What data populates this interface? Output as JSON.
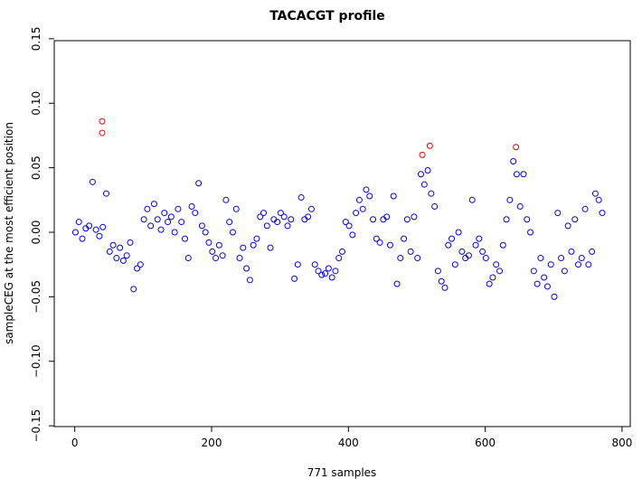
{
  "chart_data": {
    "type": "scatter",
    "title": "TACACGT profile",
    "x_label": "771 samples",
    "y_label": "sampleCEG at the most efficient position",
    "xlim": [
      -30,
      812
    ],
    "xticks": [
      0,
      200,
      400,
      600,
      800
    ],
    "ylim": [
      -0.152,
      0.152
    ],
    "yticks": [
      {
        "value": -0.15,
        "label": "−0.15"
      },
      {
        "value": -0.1,
        "label": "−0.10"
      },
      {
        "value": -0.05,
        "label": "−0.05"
      },
      {
        "value": 0,
        "label": "0.00"
      },
      {
        "value": 0.05,
        "label": "0.05"
      },
      {
        "value": 0.1,
        "label": "0.10"
      },
      {
        "value": 0.15,
        "label": "0.15"
      }
    ],
    "series": [
      {
        "color": "#0000ff",
        "x": [
          1,
          6,
          11,
          16,
          21,
          26,
          31,
          36,
          41,
          46,
          51,
          56,
          61,
          66,
          71,
          76,
          81,
          86,
          91,
          96,
          101,
          106,
          111,
          116,
          121,
          126,
          131,
          136,
          141,
          146,
          151,
          156,
          161,
          166,
          171,
          176,
          181,
          186,
          191,
          196,
          201,
          206,
          211,
          216,
          221,
          226,
          231,
          236,
          241,
          246,
          251,
          256,
          261,
          266,
          271,
          276,
          281,
          286,
          291,
          296,
          301,
          306,
          311,
          316,
          321,
          326,
          331,
          336,
          341,
          346,
          351,
          356,
          361,
          366,
          371,
          376,
          381,
          386,
          391,
          396,
          401,
          406,
          411,
          416,
          421,
          426,
          431,
          436,
          441,
          446,
          451,
          456,
          461,
          466,
          471,
          476,
          481,
          486,
          491,
          496,
          501,
          506,
          511,
          516,
          521,
          526,
          531,
          536,
          541,
          546,
          551,
          556,
          561,
          566,
          571,
          576,
          581,
          586,
          591,
          596,
          601,
          606,
          611,
          616,
          621,
          626,
          631,
          636,
          641,
          646,
          651,
          656,
          661,
          666,
          671,
          676,
          681,
          686,
          691,
          696,
          701,
          706,
          711,
          716,
          721,
          726,
          731,
          736,
          741,
          746,
          751,
          756,
          761,
          766,
          771
        ],
        "values": [
          0.0,
          0.008,
          -0.005,
          0.003,
          0.005,
          0.039,
          0.002,
          -0.003,
          0.004,
          0.03,
          -0.015,
          -0.01,
          -0.02,
          -0.012,
          -0.022,
          -0.018,
          -0.008,
          -0.044,
          -0.028,
          -0.025,
          0.01,
          0.018,
          0.005,
          0.022,
          0.01,
          0.002,
          0.015,
          0.008,
          0.012,
          0.0,
          0.018,
          0.008,
          -0.005,
          -0.02,
          0.02,
          0.015,
          0.038,
          0.005,
          0.0,
          -0.008,
          -0.015,
          -0.02,
          -0.01,
          -0.018,
          0.025,
          0.008,
          0.0,
          0.018,
          -0.02,
          -0.012,
          -0.028,
          -0.037,
          -0.01,
          -0.005,
          0.012,
          0.015,
          0.005,
          -0.012,
          0.01,
          0.008,
          0.015,
          0.012,
          0.005,
          0.01,
          -0.036,
          -0.025,
          0.027,
          0.01,
          0.012,
          0.018,
          -0.025,
          -0.03,
          -0.033,
          -0.032,
          -0.028,
          -0.035,
          -0.03,
          -0.02,
          -0.015,
          0.008,
          0.005,
          -0.002,
          0.015,
          0.025,
          0.018,
          0.033,
          0.028,
          0.01,
          -0.005,
          -0.008,
          0.01,
          0.012,
          -0.01,
          0.028,
          -0.04,
          -0.02,
          -0.005,
          0.01,
          -0.015,
          0.012,
          -0.02,
          0.045,
          0.037,
          0.048,
          0.03,
          0.02,
          -0.03,
          -0.038,
          -0.043,
          -0.01,
          -0.005,
          -0.025,
          0.0,
          -0.015,
          -0.02,
          -0.018,
          0.025,
          -0.01,
          -0.005,
          -0.015,
          -0.02,
          -0.04,
          -0.035,
          -0.025,
          -0.03,
          -0.01,
          0.01,
          0.025,
          0.055,
          0.045,
          0.02,
          0.045,
          0.01,
          0.0,
          -0.03,
          -0.04,
          -0.02,
          -0.035,
          -0.042,
          -0.025,
          -0.05,
          0.015,
          -0.02,
          -0.03,
          0.005,
          -0.015,
          0.01,
          -0.025,
          -0.02,
          0.018,
          -0.025,
          -0.015,
          0.03,
          0.025,
          0.015
        ]
      },
      {
        "color": "#ff0000",
        "x": [
          40,
          40,
          508,
          519,
          645
        ],
        "values": [
          0.086,
          0.077,
          0.06,
          0.067,
          0.066
        ]
      }
    ]
  }
}
